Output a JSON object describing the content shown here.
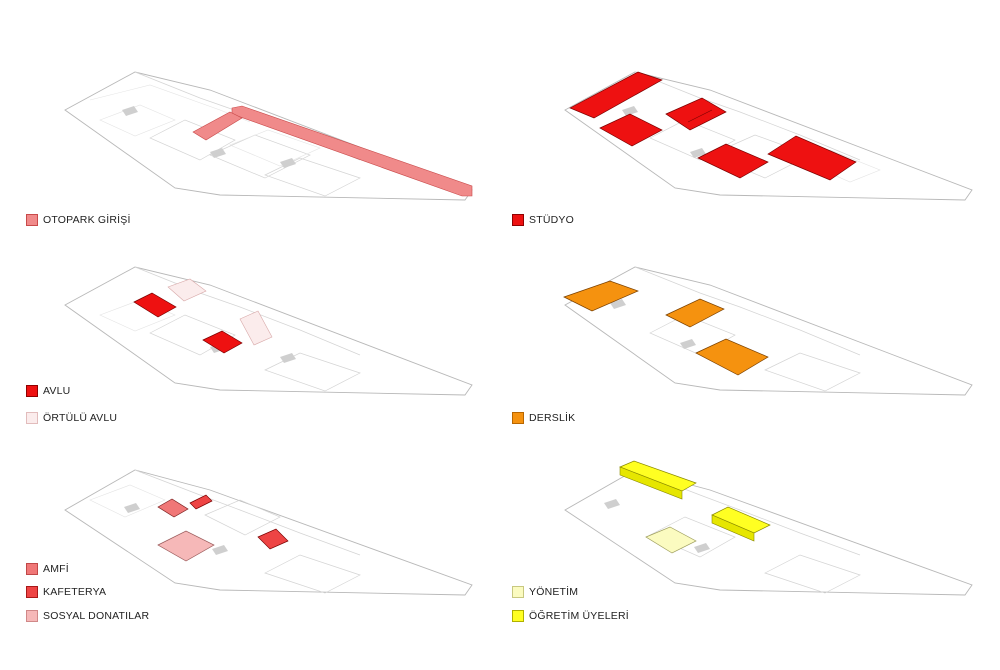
{
  "colors": {
    "otopark": "#f08a8a",
    "studyo": "#ee1111",
    "avlu": "#ee1111",
    "ortulu_avlu": "#fbecec",
    "derslik": "#f5920f",
    "amfi": "#f07777",
    "kafeterya": "#ee4444",
    "sosyal": "#f6b8b8",
    "yonetim": "#fbfbc0",
    "ogretim": "#ffff22",
    "outline": "#b8b8b8"
  },
  "panels": [
    {
      "legend": [
        {
          "label": "OTOPARK GİRİŞİ",
          "color": "#f08a8a"
        }
      ]
    },
    {
      "legend": [
        {
          "label": "STÜDYO",
          "color": "#ee1111"
        }
      ]
    },
    {
      "legend": [
        {
          "label": "AVLU",
          "color": "#ee1111"
        },
        {
          "label": "ÖRTÜLÜ AVLU",
          "color": "#fbecec"
        }
      ]
    },
    {
      "legend": [
        {
          "label": "DERSLİK",
          "color": "#f5920f"
        }
      ]
    },
    {
      "legend": [
        {
          "label": "AMFİ",
          "color": "#f07777"
        },
        {
          "label": "KAFETERYA",
          "color": "#ee4444"
        },
        {
          "label": "SOSYAL DONATILAR",
          "color": "#f6b8b8"
        }
      ]
    },
    {
      "legend": [
        {
          "label": "YÖNETİM",
          "color": "#fbfbc0"
        },
        {
          "label": "ÖĞRETİM ÜYELERİ",
          "color": "#ffff22"
        }
      ]
    }
  ]
}
